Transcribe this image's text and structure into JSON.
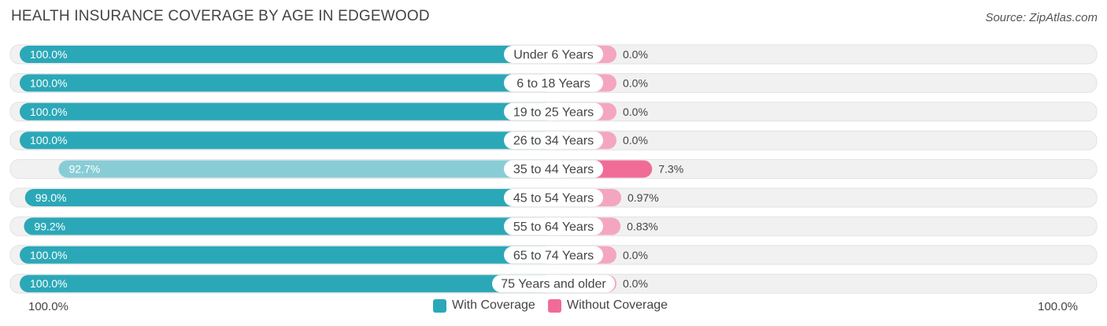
{
  "title": "HEALTH INSURANCE COVERAGE BY AGE IN EDGEWOOD",
  "source": "Source: ZipAtlas.com",
  "colors": {
    "with_coverage": "#2ba8b8",
    "with_coverage_light": "#88cdd6",
    "without_coverage": "#f4a6c0",
    "without_coverage_strong": "#f06c97",
    "track": "#f0f0f0"
  },
  "chart_data": {
    "type": "bar",
    "orientation": "horizontal-diverging",
    "categories": [
      "Under 6 Years",
      "6 to 18 Years",
      "19 to 25 Years",
      "26 to 34 Years",
      "35 to 44 Years",
      "45 to 54 Years",
      "55 to 64 Years",
      "65 to 74 Years",
      "75 Years and older"
    ],
    "series": [
      {
        "name": "With Coverage",
        "values": [
          100.0,
          100.0,
          100.0,
          100.0,
          92.7,
          99.0,
          99.2,
          100.0,
          100.0
        ],
        "labels": [
          "100.0%",
          "100.0%",
          "100.0%",
          "100.0%",
          "92.7%",
          "99.0%",
          "99.2%",
          "100.0%",
          "100.0%"
        ]
      },
      {
        "name": "Without Coverage",
        "values": [
          0.0,
          0.0,
          0.0,
          0.0,
          7.3,
          0.97,
          0.83,
          0.0,
          0.0
        ],
        "labels": [
          "0.0%",
          "0.0%",
          "0.0%",
          "0.0%",
          "7.3%",
          "0.97%",
          "0.83%",
          "0.0%",
          "0.0%"
        ]
      }
    ],
    "axis_left_label": "100.0%",
    "axis_right_label": "100.0%",
    "legend": [
      "With Coverage",
      "Without Coverage"
    ]
  }
}
